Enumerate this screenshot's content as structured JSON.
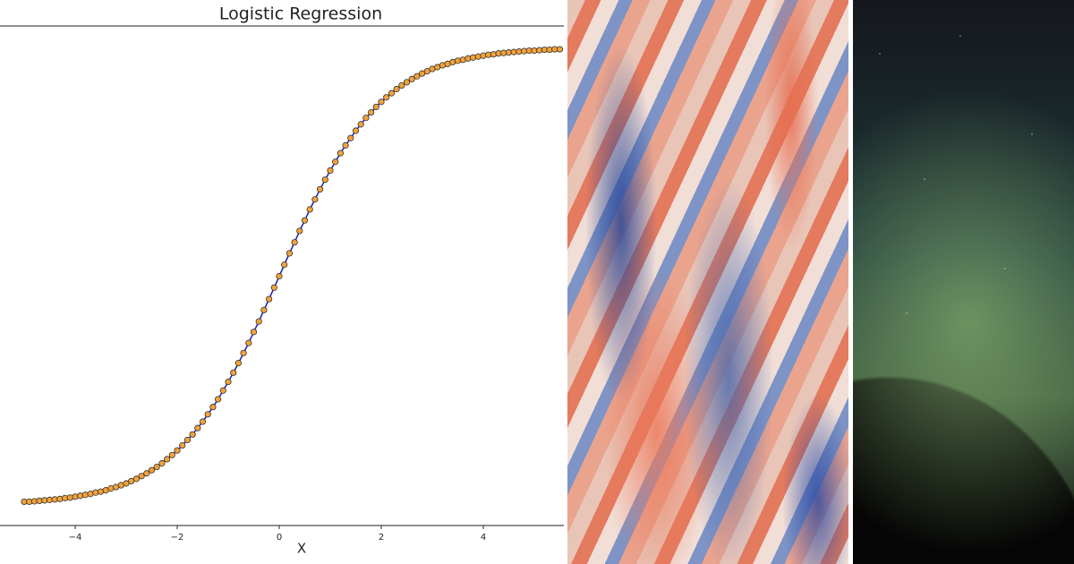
{
  "chart_data": {
    "type": "line",
    "title": "Logistic Regression",
    "x_label": "X",
    "x": [
      -5.0,
      -4.9,
      -4.8,
      -4.7,
      -4.6,
      -4.5,
      -4.4,
      -4.3,
      -4.2,
      -4.1,
      -4.0,
      -3.9,
      -3.8,
      -3.7,
      -3.6,
      -3.5,
      -3.4,
      -3.3,
      -3.2,
      -3.1,
      -3.0,
      -2.9,
      -2.8,
      -2.7,
      -2.6,
      -2.5,
      -2.4,
      -2.3,
      -2.2,
      -2.1,
      -2.0,
      -1.9,
      -1.8,
      -1.7,
      -1.6,
      -1.5,
      -1.4,
      -1.3,
      -1.2,
      -1.1,
      -1.0,
      -0.9,
      -0.8,
      -0.7,
      -0.6,
      -0.5,
      -0.4,
      -0.3,
      -0.2,
      -0.1,
      0.0,
      0.1,
      0.2,
      0.3,
      0.4,
      0.5,
      0.6,
      0.7,
      0.8,
      0.9,
      1.0,
      1.1,
      1.2,
      1.3,
      1.4,
      1.5,
      1.6,
      1.7,
      1.8,
      1.9,
      2.0,
      2.1,
      2.2,
      2.3,
      2.4,
      2.5,
      2.6,
      2.7,
      2.8,
      2.9,
      3.0,
      3.1,
      3.2,
      3.3,
      3.4,
      3.5,
      3.6,
      3.7,
      3.8,
      3.9,
      4.0,
      4.1,
      4.2,
      4.3,
      4.4,
      4.5,
      4.6,
      4.7,
      4.8,
      4.9,
      5.0,
      5.1,
      5.2,
      5.3,
      5.4,
      5.5
    ],
    "values": [
      0.007,
      0.007,
      0.008,
      0.009,
      0.01,
      0.011,
      0.012,
      0.013,
      0.015,
      0.016,
      0.018,
      0.02,
      0.022,
      0.024,
      0.027,
      0.029,
      0.032,
      0.036,
      0.039,
      0.043,
      0.047,
      0.052,
      0.057,
      0.063,
      0.069,
      0.076,
      0.083,
      0.091,
      0.1,
      0.109,
      0.119,
      0.13,
      0.142,
      0.154,
      0.168,
      0.182,
      0.198,
      0.214,
      0.231,
      0.25,
      0.269,
      0.289,
      0.31,
      0.332,
      0.354,
      0.378,
      0.401,
      0.426,
      0.45,
      0.475,
      0.5,
      0.525,
      0.55,
      0.574,
      0.599,
      0.622,
      0.646,
      0.668,
      0.69,
      0.711,
      0.731,
      0.75,
      0.769,
      0.786,
      0.802,
      0.818,
      0.832,
      0.846,
      0.858,
      0.87,
      0.881,
      0.891,
      0.9,
      0.909,
      0.917,
      0.924,
      0.931,
      0.937,
      0.943,
      0.948,
      0.953,
      0.957,
      0.961,
      0.964,
      0.968,
      0.971,
      0.973,
      0.976,
      0.978,
      0.98,
      0.982,
      0.984,
      0.985,
      0.987,
      0.988,
      0.989,
      0.99,
      0.991,
      0.992,
      0.993,
      0.993,
      0.994,
      0.995,
      0.995,
      0.996,
      0.996
    ],
    "line_color": "#1c1cb0",
    "marker_color": "#f2a23a",
    "marker_edge_color": "#333333",
    "xlim": [
      -5.474,
      5.579
    ],
    "ylim": [
      -0.045,
      1.047
    ],
    "xticks": [
      {
        "value": -4,
        "label": "−4"
      },
      {
        "value": -2,
        "label": "−2"
      },
      0,
      2,
      4
    ]
  }
}
